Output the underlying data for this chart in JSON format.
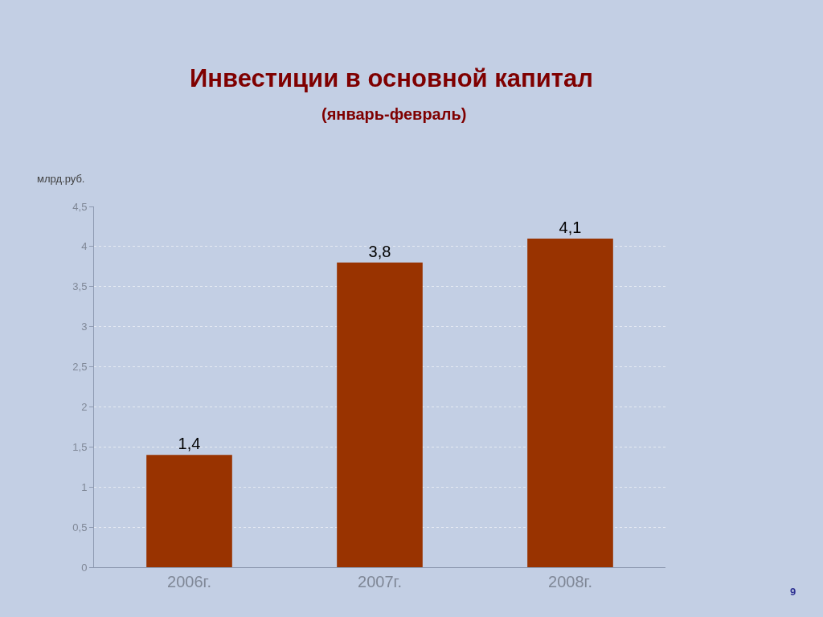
{
  "chart_data": {
    "type": "bar",
    "title": "Инвестиции в основной капитал",
    "subtitle": "(январь-февраль)",
    "ylabel": "млрд.руб.",
    "categories": [
      "2006г.",
      "2007г.",
      "2008г."
    ],
    "values": [
      1.4,
      3.8,
      4.1
    ],
    "value_labels": [
      "1,4",
      "3,8",
      "4,1"
    ],
    "color": "#993300",
    "ylim": [
      0,
      4.5
    ],
    "yticks": [
      0,
      {
        "value": 0.5,
        "label": "0,5"
      },
      1,
      {
        "value": 1.5,
        "label": "1,5"
      },
      2,
      {
        "value": 2.5,
        "label": "2,5"
      },
      3,
      {
        "value": 3.5,
        "label": "3,5"
      },
      4,
      {
        "value": 4.5,
        "label": "4,5"
      }
    ],
    "grid": "y",
    "annotations": [
      "9"
    ]
  }
}
